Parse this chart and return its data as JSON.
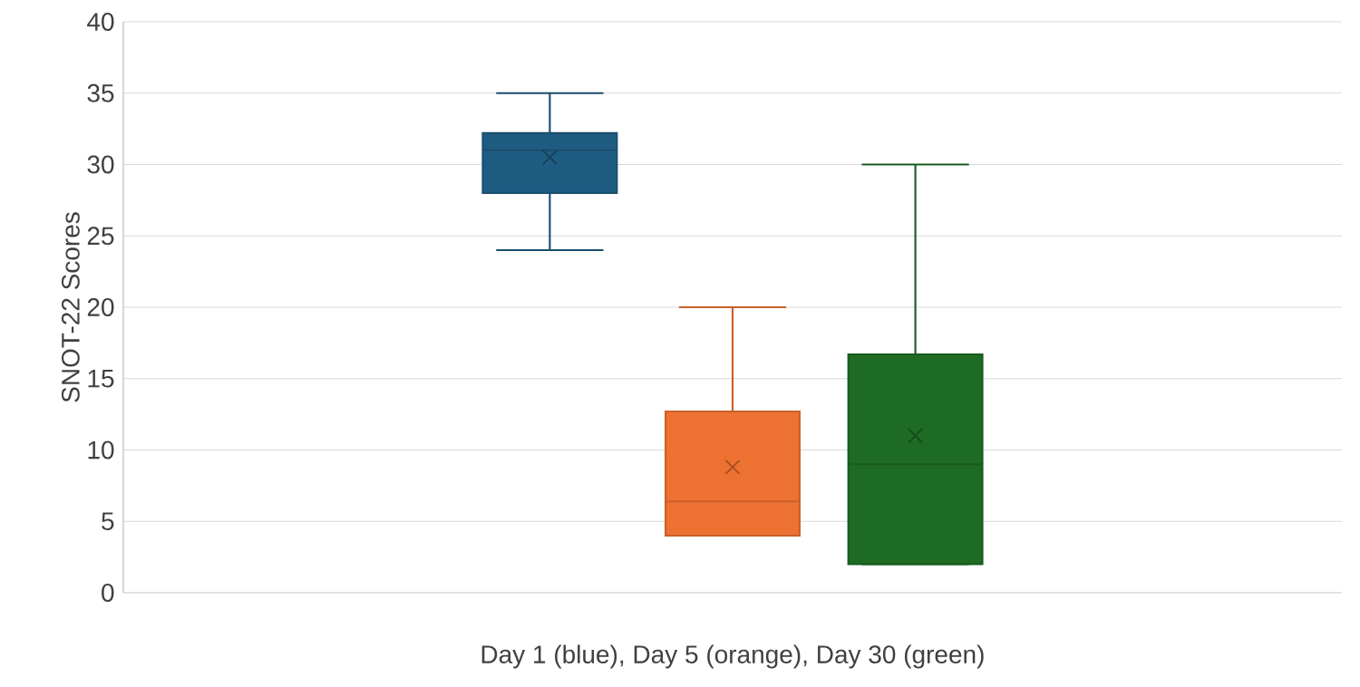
{
  "chart_data": {
    "type": "box",
    "ylabel": "SNOT-22 Scores",
    "categories": [
      "Day 1 (blue), Day 5 (orange), Day 30 (green)"
    ],
    "series": [
      {
        "color": "#1f5c82",
        "boxes": [
          {
            "low": 24,
            "q1": 28,
            "median": 31,
            "q3": 32.2,
            "high": 35,
            "mean": 30.5
          }
        ]
      },
      {
        "color": "#ed7131",
        "boxes": [
          {
            "low": 4,
            "q1": 4,
            "median": 6.4,
            "q3": 12.7,
            "high": 20,
            "mean": 8.8
          }
        ]
      },
      {
        "color": "#1e6b23",
        "boxes": [
          {
            "low": 2,
            "q1": 2,
            "median": 9,
            "q3": 16.7,
            "high": 30,
            "mean": 11
          }
        ]
      }
    ],
    "ylim": [
      0,
      40
    ],
    "yticks": [
      0,
      5,
      10,
      15,
      20,
      25,
      30,
      35,
      40
    ],
    "grid": "y"
  }
}
